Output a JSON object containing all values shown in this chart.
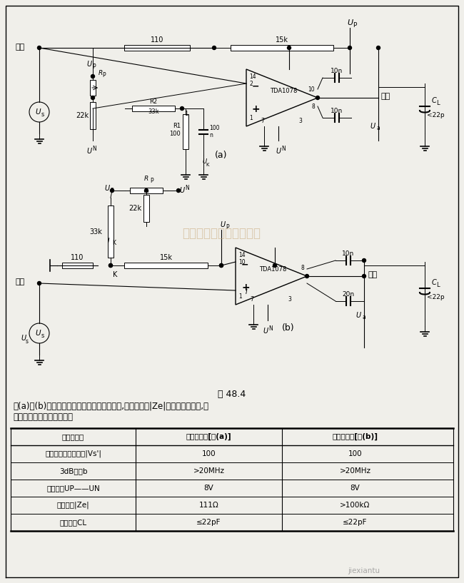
{
  "title": "图 48.4",
  "description_line1": "图(a)和(b)两个电路除输入信号的符号不同外,在输入阻抗|Ze|上也有明显不同,其",
  "description_line2": "主要技术数据如下表所示。",
  "table_headers": [
    "放大器类型",
    "反相输入端[图(a)]",
    "同相输入端[图(b)]"
  ],
  "table_rows": [
    [
      "低频下闭环放大系数|Vs'|",
      "100",
      "100"
    ],
    [
      "3dB带宽b",
      ">20MHz",
      ">20MHz"
    ],
    [
      "电源电压UP——UN",
      "8V",
      "8V"
    ],
    [
      "输入阻抗|Ze|",
      "111Ω",
      ">100kΩ"
    ],
    [
      "负载电容CL",
      "≤22pF",
      "≤22pF"
    ]
  ],
  "bg_color": "#f0efea",
  "watermark": "杭州候睿信技术有限公司"
}
